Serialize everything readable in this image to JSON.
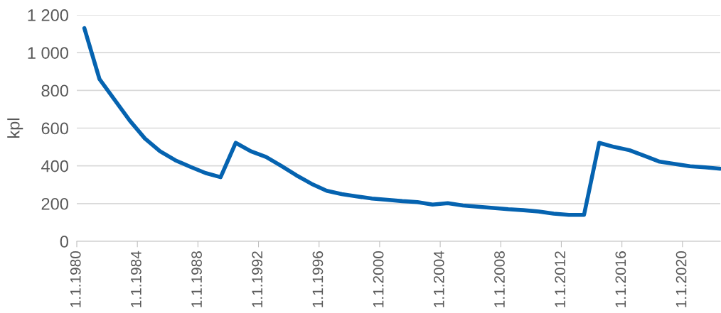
{
  "chart_data": {
    "type": "line",
    "ylabel": "kpl",
    "x": [
      "1980-07-01",
      "1981-07-01",
      "1982-07-01",
      "1983-07-01",
      "1984-07-01",
      "1985-07-01",
      "1986-07-01",
      "1987-07-01",
      "1988-07-01",
      "1989-07-01",
      "1990-07-01",
      "1991-07-01",
      "1992-07-01",
      "1993-07-01",
      "1994-07-01",
      "1995-07-01",
      "1996-07-01",
      "1997-07-01",
      "1998-07-01",
      "1999-07-01",
      "2000-07-01",
      "2001-07-01",
      "2002-07-01",
      "2003-07-01",
      "2004-07-01",
      "2005-07-01",
      "2006-07-01",
      "2007-07-01",
      "2008-07-01",
      "2009-07-01",
      "2010-07-01",
      "2011-07-01",
      "2012-07-01",
      "2013-07-01",
      "2014-07-01",
      "2015-07-01",
      "2016-07-01",
      "2017-07-01",
      "2018-07-01",
      "2019-07-01",
      "2020-07-01",
      "2021-07-01",
      "2022-07-01"
    ],
    "series": [
      {
        "color": "#0563b0",
        "values": [
          1130,
          860,
          750,
          640,
          545,
          477,
          430,
          395,
          362,
          340,
          522,
          477,
          447,
          400,
          350,
          305,
          268,
          250,
          238,
          227,
          220,
          213,
          208,
          195,
          202,
          190,
          183,
          177,
          170,
          165,
          158,
          147,
          140,
          140,
          522,
          500,
          483,
          453,
          422,
          410,
          398,
          392,
          385
        ]
      }
    ],
    "xlim": [
      "1980-01-01",
      "2022-07-01"
    ],
    "xticks": [
      {
        "value": "1980-01-01",
        "label": "1.1.1980"
      },
      {
        "value": "1984-01-01",
        "label": "1.1.1984"
      },
      {
        "value": "1988-01-01",
        "label": "1.1.1988"
      },
      {
        "value": "1992-01-01",
        "label": "1.1.1992"
      },
      {
        "value": "1996-01-01",
        "label": "1.1.1996"
      },
      {
        "value": "2000-01-01",
        "label": "1.1.2000"
      },
      {
        "value": "2004-01-01",
        "label": "1.1.2004"
      },
      {
        "value": "2008-01-01",
        "label": "1.1.2008"
      },
      {
        "value": "2012-01-01",
        "label": "1.1.2012"
      },
      {
        "value": "2016-01-01",
        "label": "1.1.2016"
      },
      {
        "value": "2020-01-01",
        "label": "1.1.2020"
      }
    ],
    "ylim": [
      0,
      1200
    ],
    "yticks": [
      0,
      200,
      400,
      600,
      800,
      {
        "value": 1000,
        "label": "1 000"
      },
      {
        "value": 1200,
        "label": "1 200"
      }
    ],
    "grid": "y",
    "legend": false,
    "marker": "none",
    "line_style": "solid"
  }
}
